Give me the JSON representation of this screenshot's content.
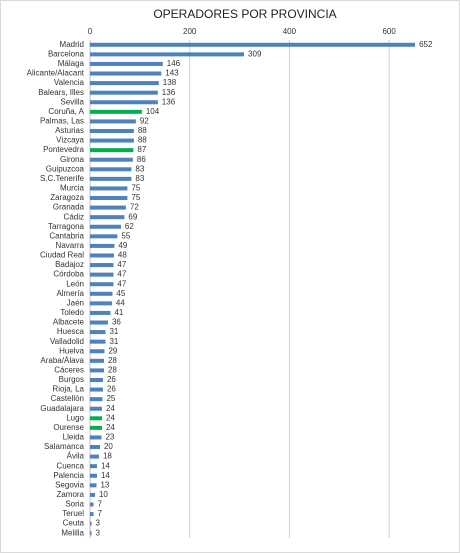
{
  "chart_data": {
    "type": "barh",
    "title": "OPERADORES POR PROVINCIA",
    "categories": [
      "Madrid",
      "Barcelona",
      "Málaga",
      "Alicante/Alacant",
      "Valencia",
      "Balears, Illes",
      "Sevilla",
      "Coruña, A",
      "Palmas, Las",
      "Asturias",
      "Vizcaya",
      "Pontevedra",
      "Girona",
      "Guipuzcoa",
      "S.C.Tenerife",
      "Murcia",
      "Zaragoza",
      "Granada",
      "Cádiz",
      "Tarragona",
      "Cantabria",
      "Navarra",
      "Ciudad Real",
      "Badajoz",
      "Córdoba",
      "León",
      "Almería",
      "Jaén",
      "Toledo",
      "Albacete",
      "Huesca",
      "Valladolid",
      "Huelva",
      "Araba/Álava",
      "Cáceres",
      "Burgos",
      "Rioja, La",
      "Castellón",
      "Guadalajara",
      "Lugo",
      "Ourense",
      "Lleida",
      "Salamanca",
      "Ávila",
      "Cuenca",
      "Palencia",
      "Segovia",
      "Zamora",
      "Soria",
      "Teruel",
      "Ceuta",
      "Melilla"
    ],
    "values": [
      652,
      309,
      146,
      143,
      138,
      136,
      136,
      104,
      92,
      88,
      88,
      87,
      86,
      83,
      83,
      75,
      75,
      72,
      69,
      62,
      55,
      49,
      48,
      47,
      47,
      47,
      45,
      44,
      41,
      36,
      31,
      31,
      29,
      28,
      28,
      26,
      26,
      25,
      24,
      24,
      24,
      23,
      20,
      18,
      14,
      14,
      13,
      10,
      7,
      7,
      3,
      3
    ],
    "bar_colors": [
      "#4f81bd",
      "#4f81bd",
      "#4f81bd",
      "#4f81bd",
      "#4f81bd",
      "#4f81bd",
      "#4f81bd",
      "#00b050",
      "#4f81bd",
      "#4f81bd",
      "#4f81bd",
      "#00b050",
      "#4f81bd",
      "#4f81bd",
      "#4f81bd",
      "#4f81bd",
      "#4f81bd",
      "#4f81bd",
      "#4f81bd",
      "#4f81bd",
      "#4f81bd",
      "#4f81bd",
      "#4f81bd",
      "#4f81bd",
      "#4f81bd",
      "#4f81bd",
      "#4f81bd",
      "#4f81bd",
      "#4f81bd",
      "#4f81bd",
      "#4f81bd",
      "#4f81bd",
      "#4f81bd",
      "#4f81bd",
      "#4f81bd",
      "#4f81bd",
      "#4f81bd",
      "#4f81bd",
      "#4f81bd",
      "#00b050",
      "#00b050",
      "#4f81bd",
      "#4f81bd",
      "#4f81bd",
      "#4f81bd",
      "#4f81bd",
      "#4f81bd",
      "#4f81bd",
      "#4f81bd",
      "#4f81bd",
      "#4f81bd",
      "#4f81bd"
    ],
    "xlim": [
      0,
      700
    ],
    "xticks": [
      0,
      200,
      400,
      600
    ],
    "grid": true
  }
}
